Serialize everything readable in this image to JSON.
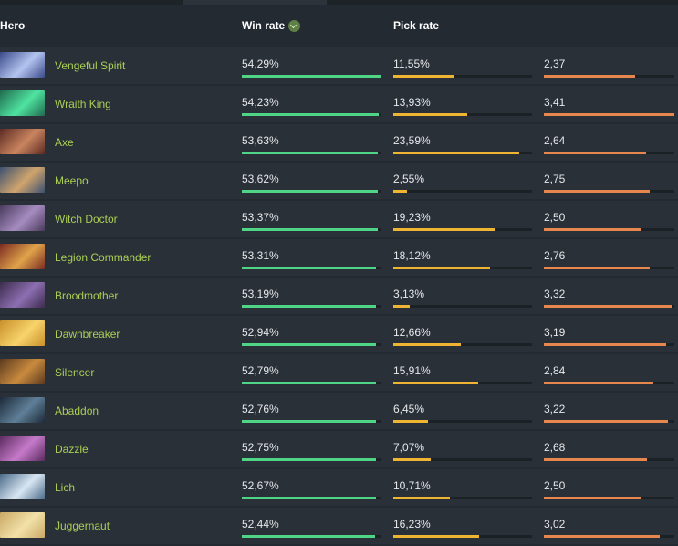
{
  "header": {
    "hero": "Hero",
    "win_rate": "Win rate",
    "pick_rate": "Pick rate",
    "sort_icon": "chevron-down-icon"
  },
  "colors": {
    "hero_name": "#a9cf54",
    "win_bar": "#4ed586",
    "pick_bar": "#f0b433",
    "third_bar": "#e8874d"
  },
  "rows": [
    {
      "hero": "Vengeful Spirit",
      "win": "54,29%",
      "pick": "11,55%",
      "third": "2,37",
      "win_fill": 1.0,
      "pick_fill": 0.44,
      "third_fill": 0.7,
      "portrait": [
        "#3b4a8a",
        "#b3c4f0"
      ]
    },
    {
      "hero": "Wraith King",
      "win": "54,23%",
      "pick": "13,93%",
      "third": "3,41",
      "win_fill": 0.99,
      "pick_fill": 0.53,
      "third_fill": 1.0,
      "portrait": [
        "#1f6b4e",
        "#4fe3a0"
      ]
    },
    {
      "hero": "Axe",
      "win": "53,63%",
      "pick": "23,59%",
      "third": "2,64",
      "win_fill": 0.98,
      "pick_fill": 0.91,
      "third_fill": 0.78,
      "portrait": [
        "#5b2a22",
        "#c9845f"
      ]
    },
    {
      "hero": "Meepo",
      "win": "53,62%",
      "pick": "2,55%",
      "third": "2,75",
      "win_fill": 0.98,
      "pick_fill": 0.1,
      "third_fill": 0.81,
      "portrait": [
        "#3b5170",
        "#d0a46d"
      ]
    },
    {
      "hero": "Witch Doctor",
      "win": "53,37%",
      "pick": "19,23%",
      "third": "2,50",
      "win_fill": 0.98,
      "pick_fill": 0.74,
      "third_fill": 0.74,
      "portrait": [
        "#4a3a5c",
        "#a58cc0"
      ]
    },
    {
      "hero": "Legion Commander",
      "win": "53,31%",
      "pick": "18,12%",
      "third": "2,76",
      "win_fill": 0.97,
      "pick_fill": 0.7,
      "third_fill": 0.81,
      "portrait": [
        "#7a2a20",
        "#e0a34a"
      ]
    },
    {
      "hero": "Broodmother",
      "win": "53,19%",
      "pick": "3,13%",
      "third": "3,32",
      "win_fill": 0.97,
      "pick_fill": 0.12,
      "third_fill": 0.98,
      "portrait": [
        "#3c2c4e",
        "#8d6fb1"
      ]
    },
    {
      "hero": "Dawnbreaker",
      "win": "52,94%",
      "pick": "12,66%",
      "third": "3,19",
      "win_fill": 0.97,
      "pick_fill": 0.49,
      "third_fill": 0.94,
      "portrait": [
        "#c8902a",
        "#f8d36b"
      ]
    },
    {
      "hero": "Silencer",
      "win": "52,79%",
      "pick": "15,91%",
      "third": "2,84",
      "win_fill": 0.97,
      "pick_fill": 0.61,
      "third_fill": 0.84,
      "portrait": [
        "#5b3a1e",
        "#c88a3e"
      ]
    },
    {
      "hero": "Abaddon",
      "win": "52,76%",
      "pick": "6,45%",
      "third": "3,22",
      "win_fill": 0.97,
      "pick_fill": 0.25,
      "third_fill": 0.95,
      "portrait": [
        "#1c2a38",
        "#5f7f98"
      ]
    },
    {
      "hero": "Dazzle",
      "win": "52,75%",
      "pick": "7,07%",
      "third": "2,68",
      "win_fill": 0.97,
      "pick_fill": 0.27,
      "third_fill": 0.79,
      "portrait": [
        "#5a2a5e",
        "#c57ac9"
      ]
    },
    {
      "hero": "Lich",
      "win": "52,67%",
      "pick": "10,71%",
      "third": "2,50",
      "win_fill": 0.97,
      "pick_fill": 0.41,
      "third_fill": 0.74,
      "portrait": [
        "#4a6a88",
        "#d8e6f2"
      ]
    },
    {
      "hero": "Juggernaut",
      "win": "52,44%",
      "pick": "16,23%",
      "third": "3,02",
      "win_fill": 0.96,
      "pick_fill": 0.62,
      "third_fill": 0.89,
      "portrait": [
        "#c9a866",
        "#f2e1a8"
      ]
    }
  ]
}
